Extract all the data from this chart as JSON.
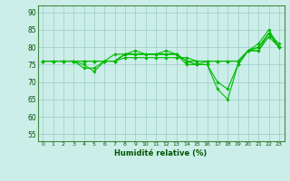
{
  "xlabel": "Humidité relative (%)",
  "xlim": [
    -0.5,
    23.5
  ],
  "ylim": [
    53,
    92
  ],
  "yticks": [
    55,
    60,
    65,
    70,
    75,
    80,
    85,
    90
  ],
  "xticks": [
    0,
    1,
    2,
    3,
    4,
    5,
    6,
    7,
    8,
    9,
    10,
    11,
    12,
    13,
    14,
    15,
    16,
    17,
    18,
    19,
    20,
    21,
    22,
    23
  ],
  "bg_color": "#cceee8",
  "grid_color": "#99cccc",
  "line_color": "#00bb00",
  "lines": [
    [
      76,
      76,
      76,
      76,
      75,
      73,
      76,
      78,
      78,
      79,
      78,
      78,
      79,
      78,
      75,
      75,
      75,
      68,
      65,
      75,
      79,
      81,
      85,
      80
    ],
    [
      76,
      76,
      76,
      76,
      74,
      74,
      76,
      76,
      78,
      78,
      78,
      78,
      78,
      78,
      76,
      75,
      75,
      70,
      68,
      75,
      79,
      80,
      84,
      80
    ],
    [
      76,
      76,
      76,
      76,
      76,
      76,
      76,
      76,
      78,
      78,
      78,
      78,
      78,
      78,
      76,
      75,
      76,
      76,
      76,
      76,
      79,
      80,
      84,
      81
    ],
    [
      76,
      76,
      76,
      76,
      76,
      76,
      76,
      76,
      78,
      78,
      78,
      78,
      78,
      78,
      76,
      76,
      76,
      76,
      76,
      76,
      79,
      79,
      84,
      80
    ],
    [
      76,
      76,
      76,
      76,
      76,
      76,
      76,
      76,
      77,
      77,
      77,
      77,
      77,
      77,
      77,
      76,
      76,
      76,
      76,
      76,
      79,
      79,
      83,
      80
    ]
  ]
}
